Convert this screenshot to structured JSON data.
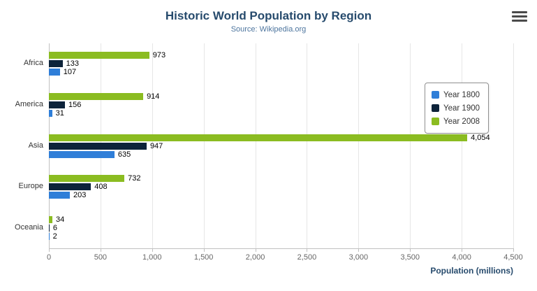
{
  "title": "Historic World Population by Region",
  "subtitle": "Source: Wikipedia.org",
  "menu": {
    "icon": "hamburger-icon"
  },
  "chart_data": {
    "type": "bar",
    "orientation": "horizontal",
    "title": "Historic World Population by Region",
    "subtitle": "Source: Wikipedia.org",
    "categories": [
      "Africa",
      "America",
      "Asia",
      "Europe",
      "Oceania"
    ],
    "series": [
      {
        "name": "Year 1800",
        "color": "#2f7ed8",
        "values": [
          107,
          31,
          635,
          203,
          2
        ]
      },
      {
        "name": "Year 1900",
        "color": "#0d233a",
        "values": [
          133,
          156,
          947,
          408,
          6
        ]
      },
      {
        "name": "Year 2008",
        "color": "#8bbc21",
        "values": [
          973,
          914,
          4054,
          732,
          34
        ]
      }
    ],
    "display_order_top_to_bottom": [
      "Year 2008",
      "Year 1900",
      "Year 1800"
    ],
    "xlabel": "Population (millions)",
    "ylabel": "",
    "xlim": [
      0,
      4500
    ],
    "xticks": [
      0,
      500,
      1000,
      1500,
      2000,
      2500,
      3000,
      3500,
      4000,
      4500
    ],
    "xtick_labels": [
      "0",
      "500",
      "1,000",
      "1,500",
      "2,000",
      "2,500",
      "3,000",
      "3,500",
      "4,000",
      "4,500"
    ],
    "grid": true,
    "legend_position": "right",
    "data_labels": true
  }
}
